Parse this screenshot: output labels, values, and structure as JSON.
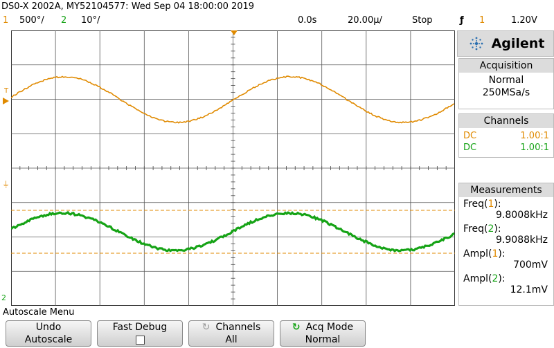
{
  "header": {
    "title": "DS0-X 2002A, MY52104577: Wed Sep 04 18:00:00 2019",
    "ch1_num": "1",
    "ch1_scale": "500°/",
    "ch2_num": "2",
    "ch2_scale": "10°/",
    "delay": "0.0s",
    "timebase": "20.00µ/",
    "run_state": "Stop",
    "trigger_icon": "rising-edge-icon",
    "trigger_symbol": "ƒ",
    "trigger_source": "1",
    "trigger_level": "1.20V"
  },
  "markers": {
    "ch1_trigger": "T",
    "ch2_ground": "2"
  },
  "brand": {
    "name": "Agilent",
    "icon": "agilent-spark-icon",
    "color": "#2a6fb0"
  },
  "acquisition": {
    "heading": "Acquisition",
    "mode": "Normal",
    "rate": "250MSa/s"
  },
  "channels": {
    "heading": "Channels",
    "rows": [
      {
        "coupling": "DC",
        "probe": "1.00:1",
        "color": "#e08a00"
      },
      {
        "coupling": "DC",
        "probe": "1.00:1",
        "color": "#16a316"
      }
    ]
  },
  "measurements": {
    "heading": "Measurements",
    "items": [
      {
        "label": "Freq",
        "ch": "1",
        "value": "9.8008kHz"
      },
      {
        "label": "Freq",
        "ch": "2",
        "value": "9.9088kHz"
      },
      {
        "label": "Ampl",
        "ch": "1",
        "value": "700mV"
      },
      {
        "label": "Ampl",
        "ch": "2",
        "value": "12.1mV"
      }
    ]
  },
  "softkeys": {
    "menu_title": "Autoscale Menu",
    "undo": {
      "line1": "Undo",
      "line2": "Autoscale"
    },
    "fast_debug": {
      "line1": "Fast Debug"
    },
    "channels": {
      "line1": "Channels",
      "line2": "All",
      "icon": "rotate-knob-icon"
    },
    "acq_mode": {
      "line1": "Acq Mode",
      "line2": "Normal",
      "icon": "rotate-knob-icon"
    }
  },
  "colors": {
    "ch1": "#e08a00",
    "ch2": "#16a316",
    "grid": "#333333"
  }
}
